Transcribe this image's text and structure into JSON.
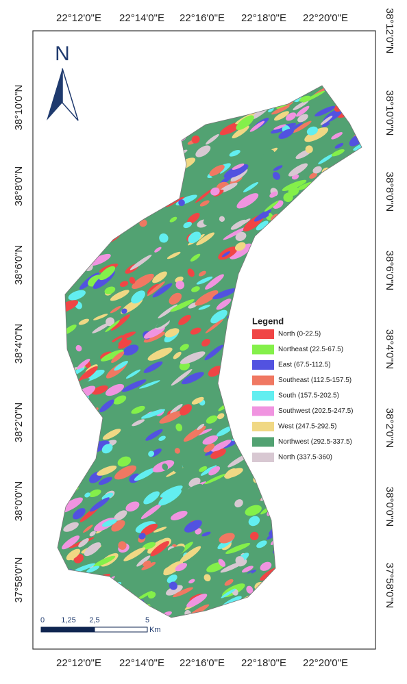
{
  "north_arrow": "N",
  "top_labels": [
    "22°12'0\"E",
    "22°14'0\"E",
    "22°16'0\"E",
    "22°18'0\"E",
    "22°20'0\"E"
  ],
  "bottom_labels": [
    "22°12'0\"E",
    "22°14'0\"E",
    "22°16'0\"E",
    "22°18'0\"E",
    "22°20'0\"E"
  ],
  "left_labels": [
    "38°10'0\"N",
    "38°8'0\"N",
    "38°6'0\"N",
    "38°4'0\"N",
    "38°2'0\"N",
    "38°0'0\"N",
    "37°58'0\"N"
  ],
  "right_labels": [
    "38°12'0\"N",
    "38°10'0\"N",
    "38°8'0\"N",
    "38°6'0\"N",
    "38°4'0\"N",
    "38°2'0\"N",
    "38°0'0\"N",
    "37°58'0\"N"
  ],
  "legend": {
    "title": "Legend",
    "items": [
      {
        "label": "North (0-22.5)",
        "color": "#f04545"
      },
      {
        "label": "Northeast (22.5-67.5)",
        "color": "#84f04a"
      },
      {
        "label": "East (67.5-112.5)",
        "color": "#5252e0"
      },
      {
        "label": "Southeast (112.5-157.5)",
        "color": "#f07862"
      },
      {
        "label": "South (157.5-202.5)",
        "color": "#62eef0"
      },
      {
        "label": "Southwest (202.5-247.5)",
        "color": "#f094e0"
      },
      {
        "label": "West (247.5-292.5)",
        "color": "#f0d884"
      },
      {
        "label": "Northwest (292.5-337.5)",
        "color": "#52a272"
      },
      {
        "label": "North (337.5-360)",
        "color": "#d8c8d2"
      }
    ]
  },
  "scale_bar": {
    "ticks": [
      "0",
      "1,25",
      "2,5",
      "5"
    ],
    "unit": "Km"
  }
}
